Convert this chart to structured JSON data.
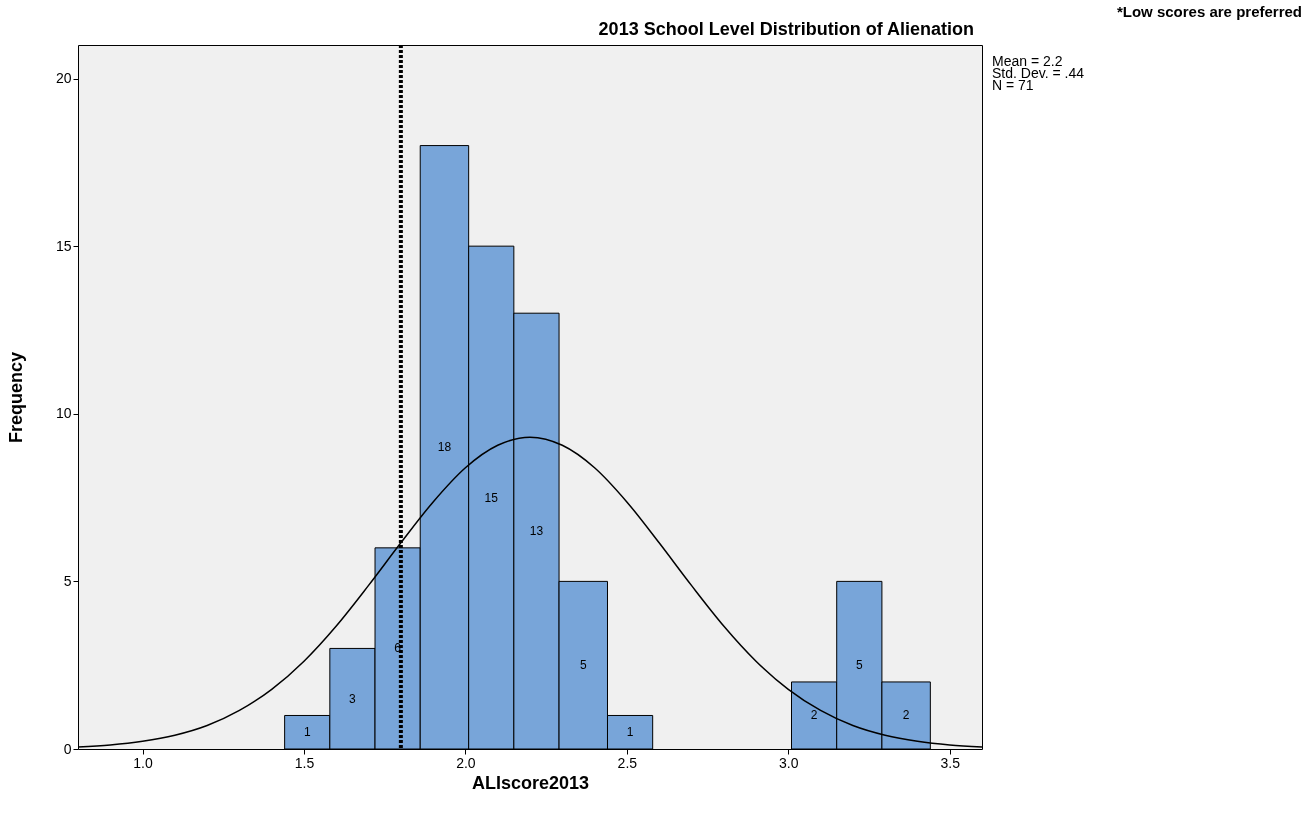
{
  "chart_data": {
    "type": "histogram",
    "title": "2013 School Level Distribution of Alienation",
    "xlabel": "ALIscore2013",
    "ylabel": "Frequency",
    "bins": [
      1.44,
      1.58,
      1.72,
      1.86,
      2.01,
      2.15,
      2.29,
      2.44,
      2.58,
      3.01,
      3.15,
      3.29,
      3.44
    ],
    "values": [
      1,
      3,
      6,
      18,
      15,
      13,
      5,
      1,
      0,
      2,
      5,
      2
    ],
    "value_labels": [
      "1",
      "3",
      "6",
      "18",
      "15",
      "13",
      "5",
      "1",
      null,
      "2",
      "5",
      "2"
    ],
    "color": "#78a5d9",
    "series": [
      {
        "type": "line",
        "color": "#000000",
        "x": [
          0.8,
          0.9,
          1.0,
          1.1,
          1.2,
          1.3,
          1.4,
          1.5,
          1.6,
          1.7,
          1.8,
          1.9,
          2.0,
          2.1,
          2.2,
          2.3,
          2.4,
          2.5,
          2.6,
          2.7,
          2.8,
          2.9,
          3.0,
          3.1,
          3.2,
          3.3,
          3.4,
          3.5,
          3.6
        ],
        "values": [
          0.06,
          0.12,
          0.23,
          0.41,
          0.7,
          1.15,
          1.78,
          2.62,
          3.67,
          4.88,
          6.15,
          7.37,
          8.39,
          9.06,
          9.3,
          9.06,
          8.39,
          7.37,
          6.15,
          4.88,
          3.67,
          2.62,
          1.78,
          1.15,
          0.7,
          0.41,
          0.23,
          0.12,
          0.06
        ]
      }
    ],
    "ref_lines": [
      {
        "axis": "x",
        "value": 1.8,
        "color": "#000000",
        "line_style": "dotted"
      }
    ],
    "annotations": [
      "*Low scores are preferred",
      "Mean = 2.2",
      "Std. Dev. = .44",
      "N = 71"
    ],
    "xlim": [
      0.8,
      3.6
    ],
    "xticks": [
      {
        "value": 1,
        "label": "1.0"
      },
      {
        "value": 1.5,
        "label": "1.5"
      },
      {
        "value": 2,
        "label": "2.0"
      },
      {
        "value": 2.5,
        "label": "2.5"
      },
      {
        "value": 3,
        "label": "3.0"
      },
      {
        "value": 3.5,
        "label": "3.5"
      }
    ],
    "ylim": [
      0,
      21
    ],
    "yticks": [
      0,
      5,
      10,
      15,
      20
    ],
    "grid": false
  }
}
